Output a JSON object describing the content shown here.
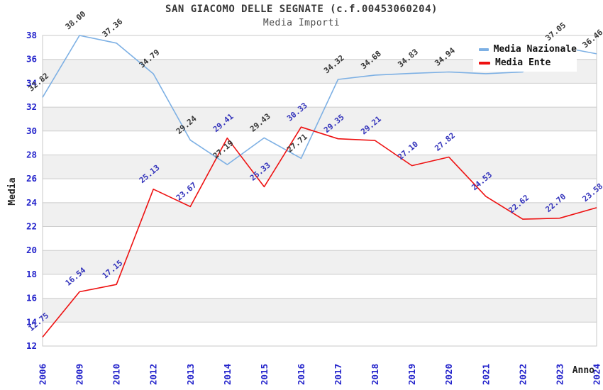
{
  "header": {
    "title": "SAN GIACOMO DELLE SEGNATE (c.f.00453060204)",
    "subtitle": "Media Importi"
  },
  "legend": {
    "position": "top-right",
    "items": [
      {
        "label": "Media Nazionale",
        "color": "#7db0e4"
      },
      {
        "label": "Media Ente",
        "color": "#ee1111"
      }
    ]
  },
  "chart_data": {
    "type": "line",
    "title": "SAN GIACOMO DELLE SEGNATE (c.f.00453060204)",
    "subtitle": "Media Importi",
    "xlabel": "Anno",
    "ylabel": "Media",
    "x": [
      "2006",
      "2009",
      "2010",
      "2012",
      "2013",
      "2014",
      "2015",
      "2016",
      "2017",
      "2018",
      "2019",
      "2020",
      "2021",
      "2022",
      "2023",
      "2024"
    ],
    "ylim": [
      12,
      38
    ],
    "y_ticks": [
      12,
      14,
      16,
      18,
      20,
      22,
      24,
      26,
      28,
      30,
      32,
      34,
      36,
      38
    ],
    "grid": true,
    "band_colors": [
      "#ffffff",
      "#f0f0f0"
    ],
    "grid_color": "#cccccc",
    "border_color": "#c8c8c8",
    "tick_color": "#2323cb",
    "series": [
      {
        "name": "Media Nazionale",
        "color": "#7db0e4",
        "label_color": "#363636",
        "values": [
          32.82,
          38.0,
          37.36,
          34.79,
          29.24,
          27.19,
          29.43,
          27.71,
          34.32,
          34.68,
          34.83,
          34.94,
          34.8,
          34.95,
          37.05,
          36.46
        ],
        "labels": [
          "32.82",
          "38.00",
          "37.36",
          "34.79",
          "29.24",
          "27.19",
          "29.43",
          "27.71",
          "34.32",
          "34.68",
          "34.83",
          "34.94",
          "",
          "",
          "37.05",
          "36.46"
        ]
      },
      {
        "name": "Media Ente",
        "color": "#ee1111",
        "label_color": "#3333bb",
        "values": [
          12.75,
          16.54,
          17.15,
          25.13,
          23.67,
          29.41,
          25.33,
          30.33,
          29.35,
          29.21,
          27.1,
          27.82,
          24.53,
          22.62,
          22.7,
          23.58
        ],
        "labels": [
          "12.75",
          "16.54",
          "17.15",
          "25.13",
          "23.67",
          "29.41",
          "25.33",
          "30.33",
          "29.35",
          "29.21",
          "27.10",
          "27.82",
          "24.53",
          "22.62",
          "22.70",
          "23.58"
        ]
      }
    ]
  }
}
